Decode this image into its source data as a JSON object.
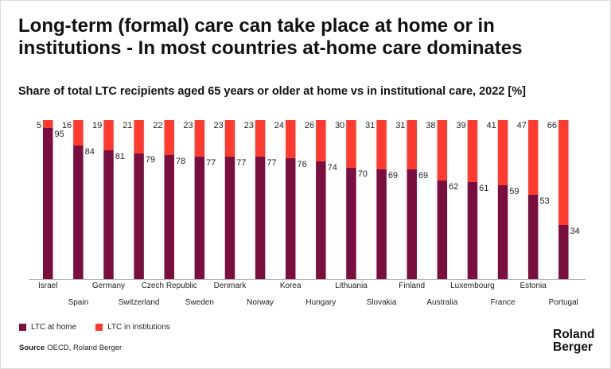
{
  "chart_data": {
    "type": "bar",
    "stacked": true,
    "title": "Long-term (formal) care can take place at home or in institutions - In most countries at-home care dominates",
    "subtitle": "Share of total LTC recipients aged 65 years or older at home vs in institutional care, 2022 [%]",
    "xlabel": "",
    "ylabel": "",
    "ylim": [
      0,
      100
    ],
    "grid": false,
    "legend": "bottom-left",
    "categories": [
      "Israel",
      "Spain",
      "Germany",
      "Switzerland",
      "Czech Republic",
      "Sweden",
      "Denmark",
      "Norway",
      "Korea",
      "Hungary",
      "Lithuania",
      "Slovakia",
      "Finland",
      "Australia",
      "Luxembourg",
      "France",
      "Estonia",
      "Portugal"
    ],
    "series": [
      {
        "name": "LTC at home",
        "color": "#7a0f3f",
        "values": [
          95,
          84,
          81,
          79,
          78,
          77,
          77,
          77,
          76,
          74,
          70,
          69,
          69,
          62,
          61,
          59,
          53,
          34
        ]
      },
      {
        "name": "LTC in institutions",
        "color": "#ff3b30",
        "values": [
          5,
          16,
          19,
          21,
          22,
          23,
          23,
          23,
          24,
          26,
          30,
          31,
          31,
          38,
          39,
          41,
          47,
          66
        ]
      }
    ]
  },
  "source": {
    "label": "Source",
    "text": "OECD, Roland Berger"
  },
  "logo": {
    "lines": [
      "Roland",
      "Berger"
    ]
  }
}
